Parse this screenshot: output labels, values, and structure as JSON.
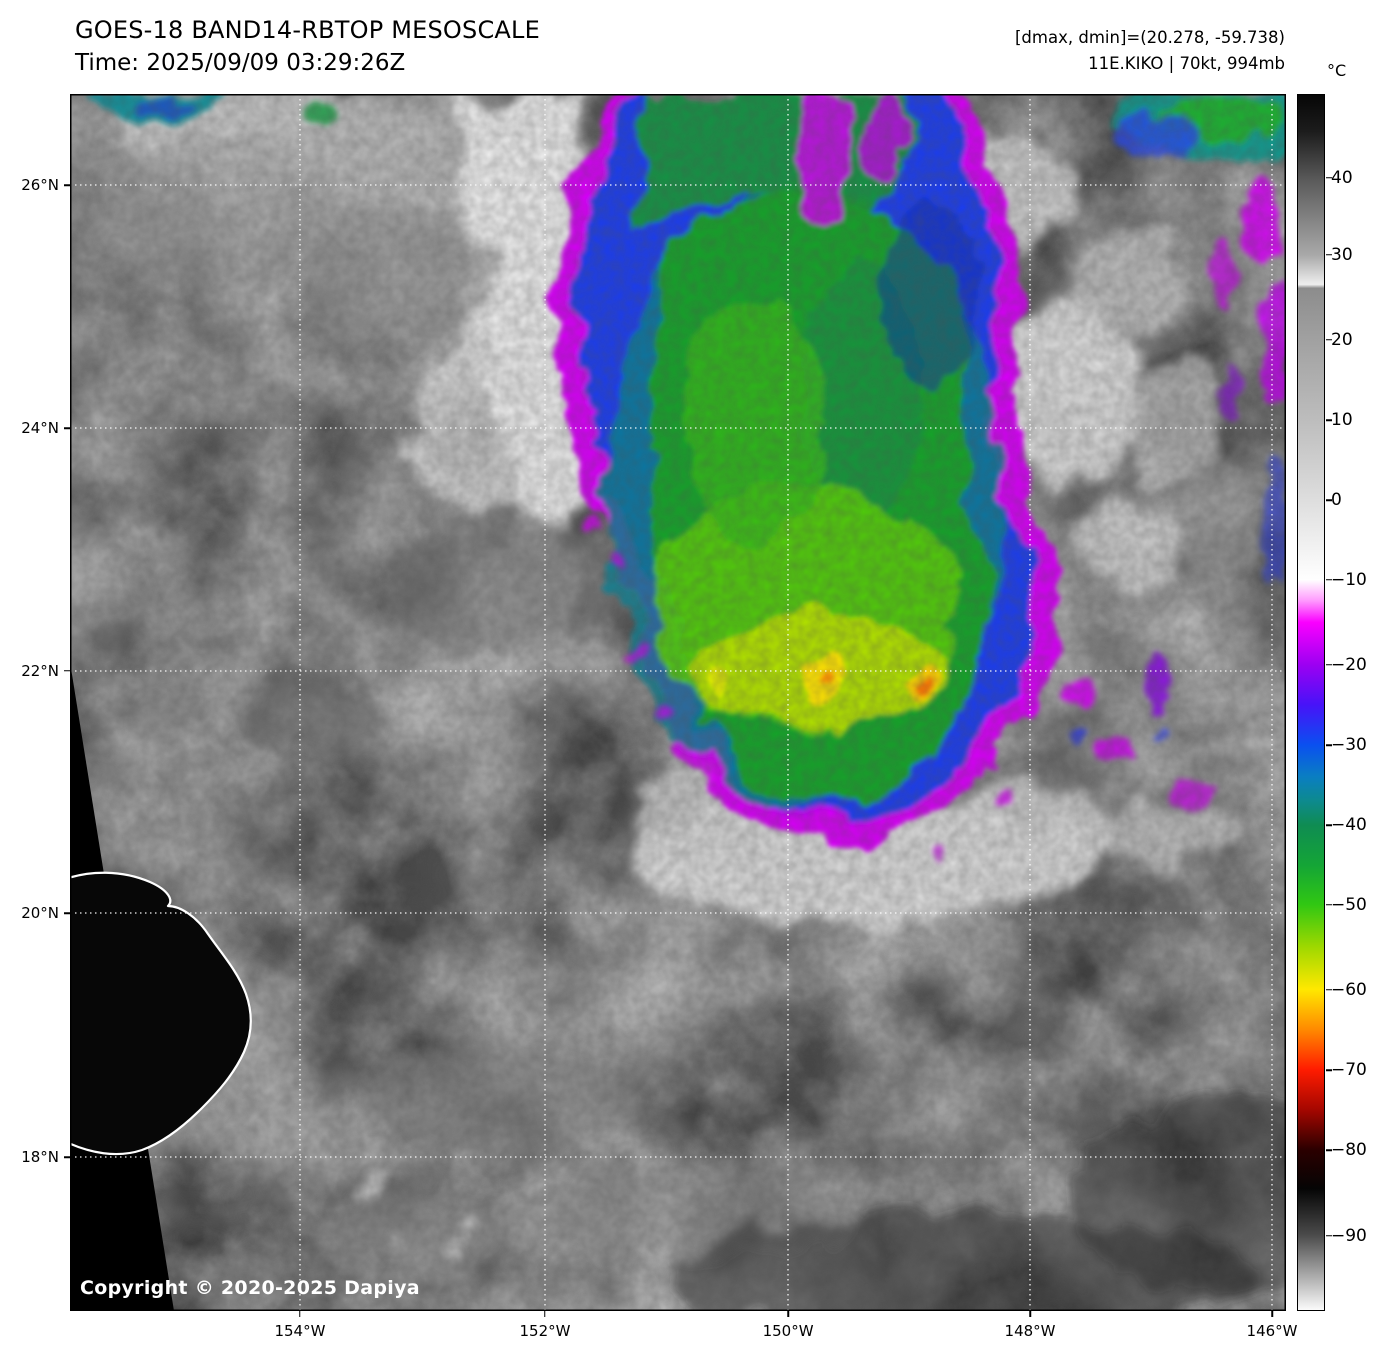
{
  "header": {
    "title": "GOES-18 BAND14-RBTOP MESOSCALE",
    "time": "Time: 2025/09/09 03:29:26Z",
    "dmax_dmin": "[dmax, dmin]=(20.278, -59.738)",
    "storm_info": "11E.KIKO | 70kt, 994mb"
  },
  "map": {
    "copyright": "Copyright © 2020-2025 Dapiya",
    "lat_labels": [
      {
        "text": "26°N",
        "pct": 7.48
      },
      {
        "text": "24°N",
        "pct": 27.45
      },
      {
        "text": "22°N",
        "pct": 47.41
      },
      {
        "text": "20°N",
        "pct": 67.3
      },
      {
        "text": "18°N",
        "pct": 87.35
      }
    ],
    "lon_labels": [
      {
        "text": "154°W",
        "pct": 18.91
      },
      {
        "text": "152°W",
        "pct": 39.06
      },
      {
        "text": "150°W",
        "pct": 59.05
      },
      {
        "text": "148°W",
        "pct": 78.95
      },
      {
        "text": "146°W",
        "pct": 98.85
      }
    ]
  },
  "colorbar": {
    "unit": "°C",
    "ticks": [
      {
        "label": "40",
        "pct": 6.9
      },
      {
        "label": "30",
        "pct": 13.2
      },
      {
        "label": "20",
        "pct": 20.2
      },
      {
        "label": "10",
        "pct": 26.8
      },
      {
        "label": "0",
        "pct": 33.4
      },
      {
        "label": "−10",
        "pct": 39.9
      },
      {
        "label": "−20",
        "pct": 46.9
      },
      {
        "label": "−30",
        "pct": 53.5
      },
      {
        "label": "−40",
        "pct": 60.1
      },
      {
        "label": "−50",
        "pct": 66.6
      },
      {
        "label": "−60",
        "pct": 73.6
      },
      {
        "label": "−70",
        "pct": 80.2
      },
      {
        "label": "−80",
        "pct": 86.8
      },
      {
        "label": "−90",
        "pct": 93.8
      }
    ],
    "gradient_stops": [
      {
        "pct": 0,
        "color": "#060606"
      },
      {
        "pct": 3,
        "color": "#1c1c1c"
      },
      {
        "pct": 7,
        "color": "#5a5a5a"
      },
      {
        "pct": 13.2,
        "color": "#a9a9a9"
      },
      {
        "pct": 15.6,
        "color": "#efefef"
      },
      {
        "pct": 15.9,
        "color": "#8c8c8c"
      },
      {
        "pct": 20.2,
        "color": "#a1a1a1"
      },
      {
        "pct": 26.8,
        "color": "#bdbdbd"
      },
      {
        "pct": 33.4,
        "color": "#dedede"
      },
      {
        "pct": 39.9,
        "color": "#ffffff"
      },
      {
        "pct": 41.6,
        "color": "#ff9bfe"
      },
      {
        "pct": 43.4,
        "color": "#fa00ff"
      },
      {
        "pct": 46.9,
        "color": "#9c00f2"
      },
      {
        "pct": 50.2,
        "color": "#4713f8"
      },
      {
        "pct": 53.5,
        "color": "#0a50f0"
      },
      {
        "pct": 56.1,
        "color": "#0a7ec2"
      },
      {
        "pct": 58.1,
        "color": "#0d8a8e"
      },
      {
        "pct": 60.1,
        "color": "#0f8c52"
      },
      {
        "pct": 63.4,
        "color": "#14a536"
      },
      {
        "pct": 66.6,
        "color": "#30c713"
      },
      {
        "pct": 70.1,
        "color": "#9ed800"
      },
      {
        "pct": 73.6,
        "color": "#ffe800"
      },
      {
        "pct": 76.9,
        "color": "#ff8a00"
      },
      {
        "pct": 80.2,
        "color": "#ff1c00"
      },
      {
        "pct": 83.5,
        "color": "#a50700"
      },
      {
        "pct": 86.8,
        "color": "#2b0000"
      },
      {
        "pct": 90,
        "color": "#050505"
      },
      {
        "pct": 93.8,
        "color": "#4a4a4a"
      },
      {
        "pct": 100,
        "color": "#fbfbfb"
      }
    ]
  }
}
